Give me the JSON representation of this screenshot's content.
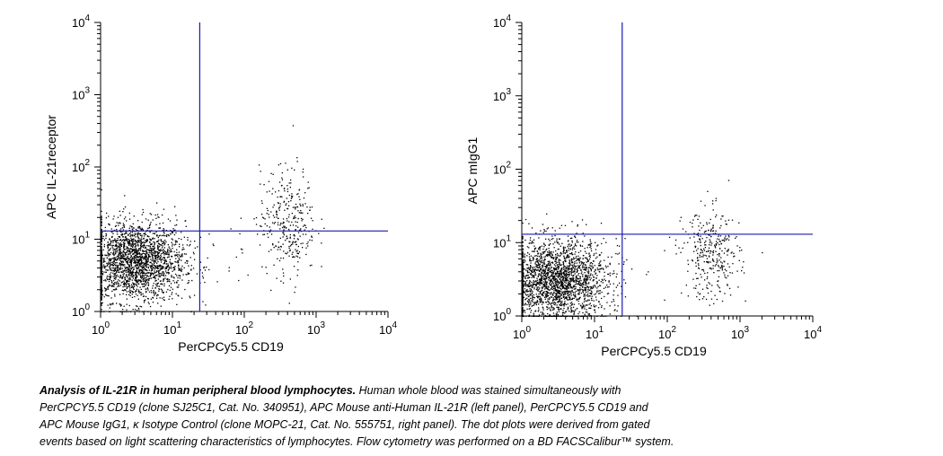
{
  "chart_data": [
    {
      "type": "scatter",
      "scale": "log",
      "xlim": [
        1,
        10000
      ],
      "ylim": [
        1,
        10000
      ],
      "x_ticks": [
        "10^0",
        "10^1",
        "10^2",
        "10^3",
        "10^4"
      ],
      "y_ticks": [
        "10^0",
        "10^1",
        "10^2",
        "10^3",
        "10^4"
      ],
      "xlabel": "PerCPCy5.5 CD19",
      "ylabel": "APC IL-21receptor",
      "quadrant_gate": {
        "x": 24,
        "y": 13,
        "color": "#1a1ab4"
      },
      "populations": [
        {
          "description_key": "CD19-negative lymphocytes",
          "x_center": 3,
          "y_center": 5,
          "x_range": [
            1,
            24
          ],
          "y_range": [
            1,
            13
          ]
        },
        {
          "description_key": "CD19-positive B cells",
          "x_center": 400,
          "y_center": 18,
          "x_range": [
            150,
            900
          ],
          "y_range": [
            2,
            60
          ]
        }
      ]
    },
    {
      "type": "scatter",
      "scale": "log",
      "xlim": [
        1,
        10000
      ],
      "ylim": [
        1,
        10000
      ],
      "x_ticks": [
        "10^0",
        "10^1",
        "10^2",
        "10^3",
        "10^4"
      ],
      "y_ticks": [
        "10^0",
        "10^1",
        "10^2",
        "10^3",
        "10^4"
      ],
      "xlabel": "PerCPCy5.5 CD19",
      "ylabel": "APC mIgG1",
      "quadrant_gate": {
        "x": 24,
        "y": 13,
        "color": "#1a1ab4"
      },
      "populations": [
        {
          "description_key": "CD19-negative lymphocytes",
          "x_center": 3,
          "y_center": 3,
          "x_range": [
            1,
            24
          ],
          "y_range": [
            1,
            13
          ]
        },
        {
          "description_key": "CD19-positive B cells",
          "x_center": 400,
          "y_center": 7,
          "x_range": [
            150,
            900
          ],
          "y_range": [
            1.5,
            25
          ]
        }
      ]
    }
  ],
  "caption": {
    "lead": "Analysis of IL-21R in human peripheral blood lymphocytes.",
    "line1_rest": " Human whole blood was stained simultaneously with",
    "line2": "PerCPCY5.5 CD19 (clone SJ25C1, Cat. No. 340951), APC Mouse anti-Human IL-21R (left panel), PerCPCY5.5 CD19 and",
    "line3": "APC Mouse IgG1, κ Isotype Control (clone MOPC-21, Cat. No. 555751, right panel). The dot plots were derived from gated",
    "line4": "events based on light scattering characteristics of lymphocytes. Flow cytometry was performed on a BD FACSCalibur™ system."
  }
}
